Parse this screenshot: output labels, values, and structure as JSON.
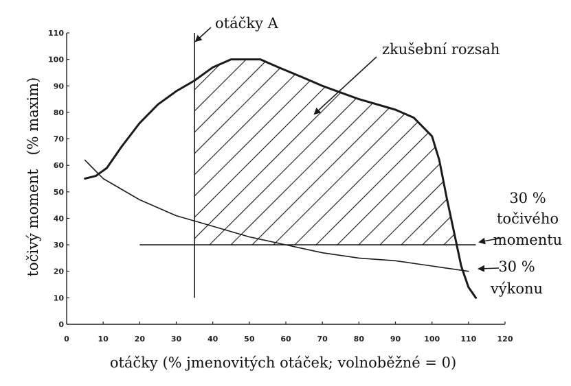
{
  "chart_data": {
    "type": "line",
    "xlabel": "otáčky (% jmenovitých otáček; volnoběžné = 0)",
    "ylabel": "točivý moment   (% maxim)",
    "xlim": [
      0,
      120
    ],
    "ylim": [
      0,
      110
    ],
    "x_ticks": [
      0,
      10,
      20,
      30,
      40,
      50,
      60,
      70,
      80,
      90,
      100,
      110,
      120
    ],
    "y_ticks": [
      0,
      10,
      20,
      30,
      40,
      50,
      60,
      70,
      80,
      90,
      100,
      110
    ],
    "grid": false,
    "series": [
      {
        "values": [
          [
            5,
            55
          ],
          [
            8,
            56
          ],
          [
            11,
            59
          ],
          [
            15,
            67
          ],
          [
            20,
            76
          ],
          [
            25,
            83
          ],
          [
            30,
            88
          ],
          [
            35,
            92
          ],
          [
            40,
            97
          ],
          [
            45,
            100
          ],
          [
            50,
            100
          ],
          [
            53,
            100
          ],
          [
            58,
            97
          ],
          [
            65,
            93
          ],
          [
            70,
            90
          ],
          [
            80,
            85
          ],
          [
            90,
            81
          ],
          [
            95,
            78
          ],
          [
            100,
            71
          ],
          [
            102,
            62
          ],
          [
            104,
            48
          ],
          [
            106,
            35
          ],
          [
            108,
            22
          ],
          [
            110,
            14
          ],
          [
            112,
            10
          ]
        ]
      },
      {
        "values": [
          [
            5,
            62
          ],
          [
            10,
            55
          ],
          [
            15,
            51
          ],
          [
            20,
            47
          ],
          [
            30,
            41
          ],
          [
            40,
            37
          ],
          [
            50,
            33
          ],
          [
            60,
            30
          ],
          [
            70,
            27
          ],
          [
            80,
            25
          ],
          [
            90,
            24
          ],
          [
            100,
            22
          ],
          [
            110,
            20
          ]
        ]
      }
    ],
    "reference_lines": {
      "vertical_x": 35,
      "vertical_y_range": [
        10,
        110
      ],
      "horizontal_y": 30,
      "horizontal_x_range": [
        20,
        112
      ]
    },
    "hatched_region": {
      "bounds": "x >= 35, y >= 30, below full-load torque curve"
    },
    "annotations": {
      "speed_a": "otáčky A",
      "test_range": "zkušební rozsah",
      "torque_30_line1": "30 %",
      "torque_30_line2": "točivého",
      "torque_30_line3": "momentu",
      "power_30_line1": "30 %",
      "power_30_line2": "výkonu"
    }
  }
}
